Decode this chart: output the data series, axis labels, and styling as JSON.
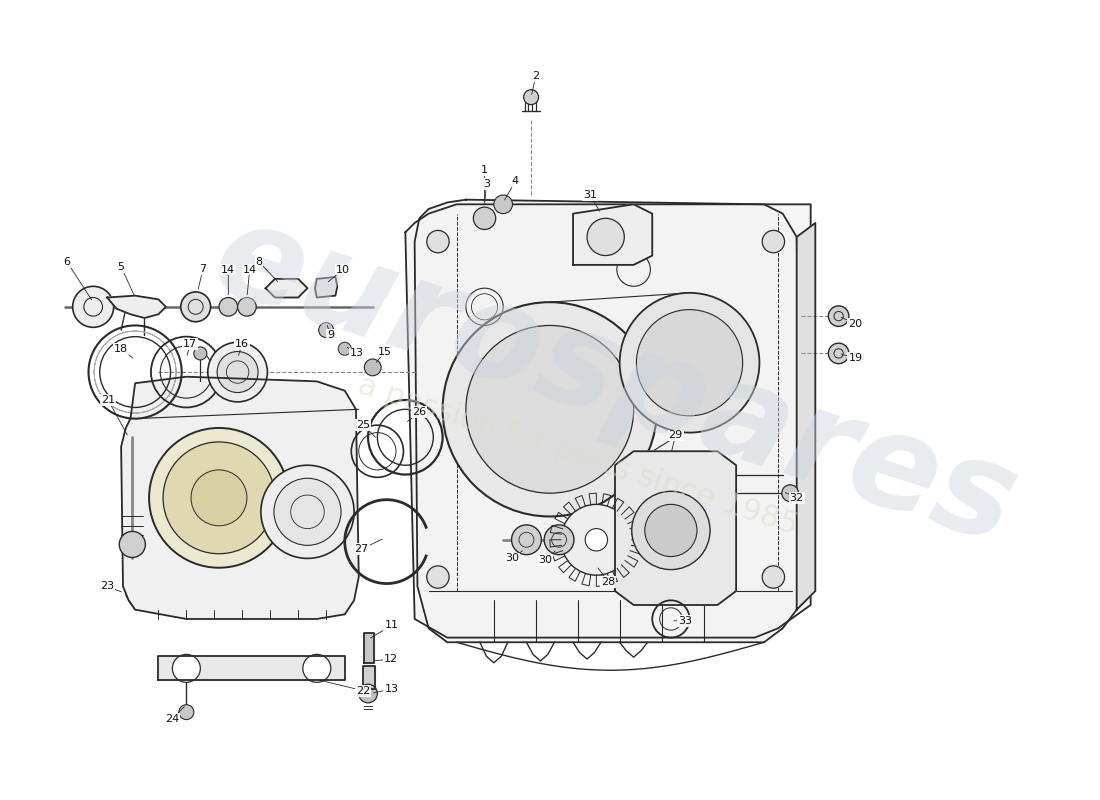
{
  "bg_color": "#ffffff",
  "line_color": "#2a2a2a",
  "watermark1": "eurospares",
  "watermark2": "a passion for parts since 1985",
  "lw_main": 1.3,
  "lw_thin": 0.7,
  "label_fs": 8.0
}
